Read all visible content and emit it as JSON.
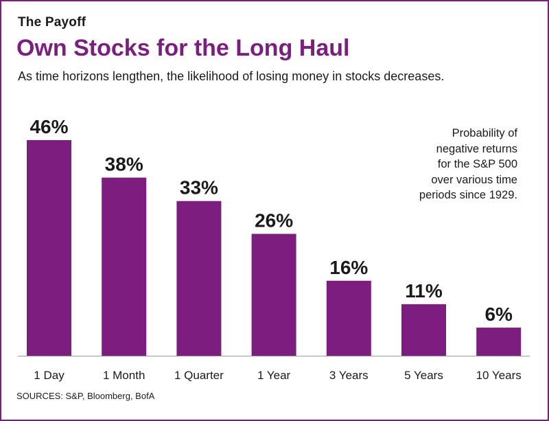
{
  "header": {
    "kicker": "The Payoff",
    "title": "Own Stocks for the Long Haul",
    "subtitle": "As time horizons lengthen, the likelihood of losing money in stocks decreases."
  },
  "note_lines": [
    "Probability of",
    "negative returns",
    "for the S&P 500",
    "over various time",
    "periods since 1929."
  ],
  "source": "SOURCES: S&P, Bloomberg, BofA",
  "colors": {
    "bar": "#7d1d7f",
    "frame": "#7d1d7f",
    "text": "#1a1a1a"
  },
  "chart_data": {
    "type": "bar",
    "title": "Own Stocks for the Long Haul",
    "categories": [
      "1 Day",
      "1 Month",
      "1 Quarter",
      "1 Year",
      "3 Years",
      "5 Years",
      "10 Years"
    ],
    "values": [
      46,
      38,
      33,
      26,
      16,
      11,
      6
    ],
    "data_labels": [
      "46%",
      "38%",
      "33%",
      "26%",
      "16%",
      "11%",
      "6%"
    ],
    "ylim": [
      0,
      46
    ],
    "grid": false,
    "legend": "none"
  }
}
